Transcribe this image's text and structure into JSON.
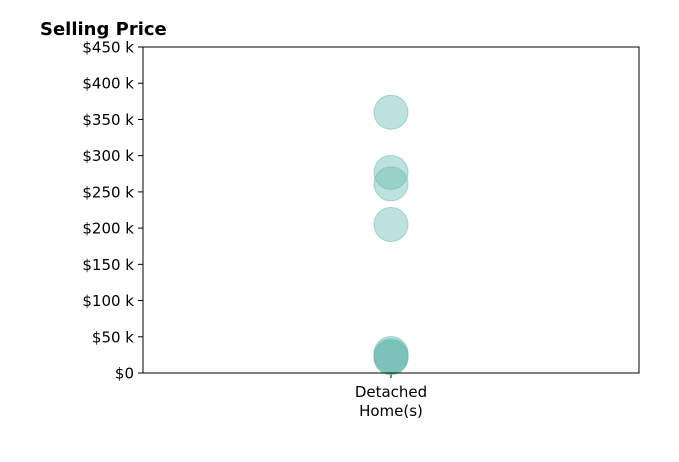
{
  "chart_data": {
    "type": "scatter",
    "title": "Selling Price",
    "xlabel": "",
    "ylabel": "",
    "categories": [
      "Detached\nHome(s)"
    ],
    "ylim": [
      0,
      450000
    ],
    "yticks": [
      {
        "value": 0,
        "label": "$0"
      },
      {
        "value": 50000,
        "label": "$50 k"
      },
      {
        "value": 100000,
        "label": "$100 k"
      },
      {
        "value": 150000,
        "label": "$150 k"
      },
      {
        "value": 200000,
        "label": "$200 k"
      },
      {
        "value": 250000,
        "label": "$250 k"
      },
      {
        "value": 300000,
        "label": "$300 k"
      },
      {
        "value": 350000,
        "label": "$350 k"
      },
      {
        "value": 400000,
        "label": "$400 k"
      },
      {
        "value": 450000,
        "label": "$450 k"
      }
    ],
    "series": [
      {
        "category": "Detached\nHome(s)",
        "values": [
          360000,
          277000,
          261000,
          205000,
          27000,
          24000,
          22000,
          21000
        ]
      }
    ],
    "marker_color": "#6cbcb4",
    "marker_opacity": 0.45,
    "grid": false,
    "legend": "none"
  }
}
